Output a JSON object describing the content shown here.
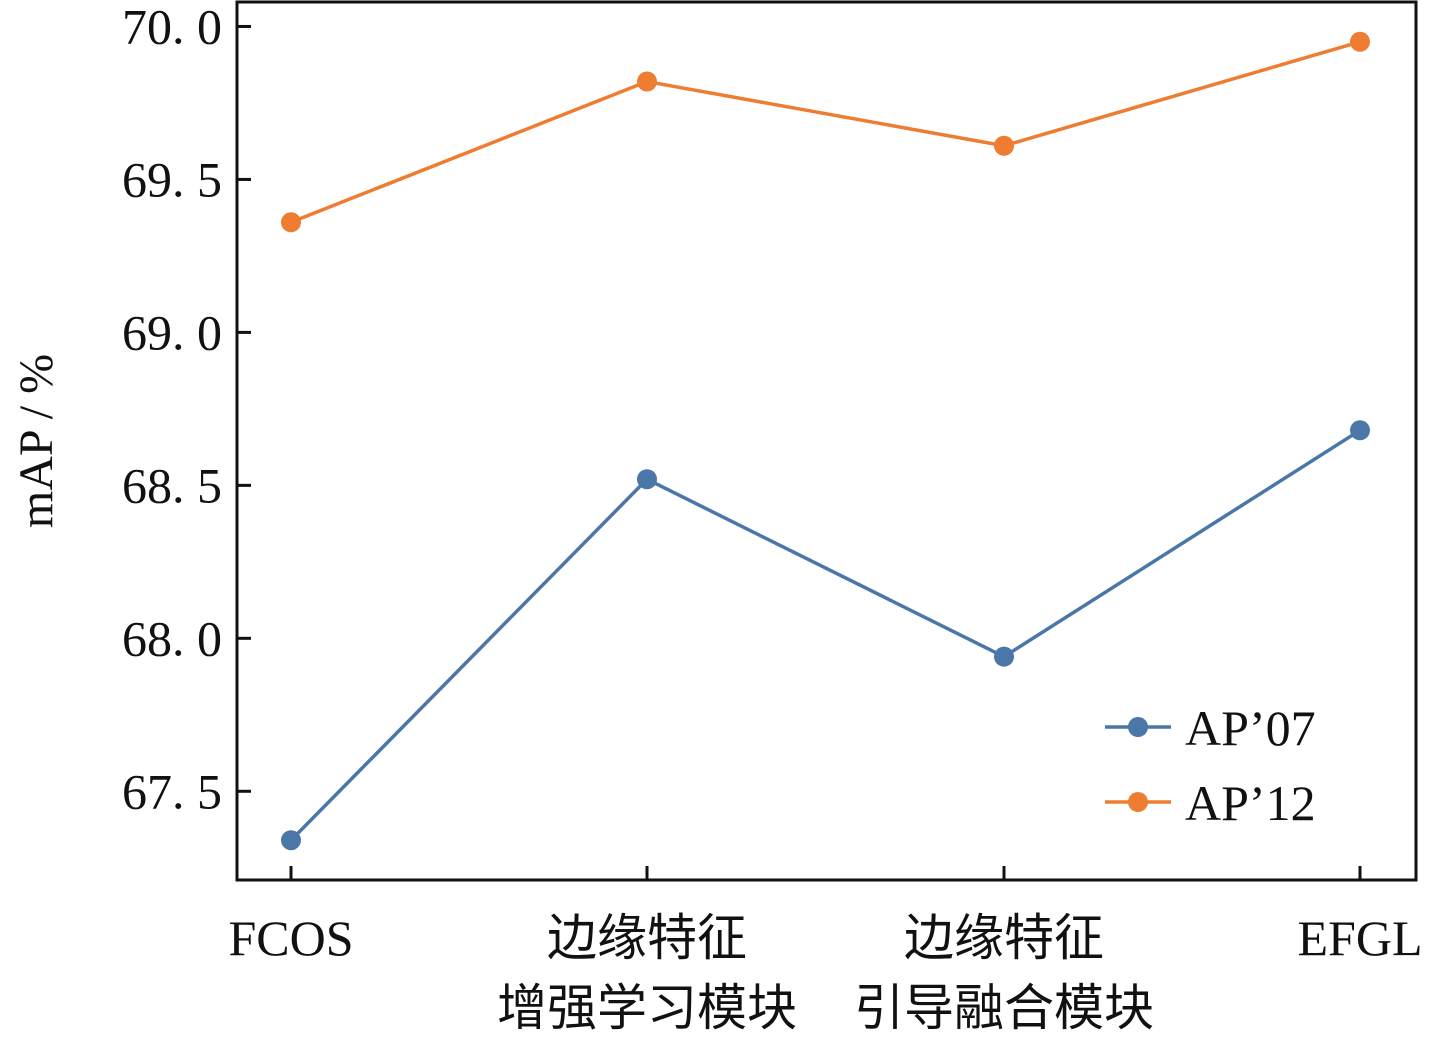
{
  "chart_data": {
    "type": "line",
    "categories": [
      [
        "FCOS"
      ],
      [
        "边缘特征",
        "增强学习模块"
      ],
      [
        "边缘特征",
        "引导融合模块"
      ],
      [
        "EFGL"
      ]
    ],
    "series": [
      {
        "name": "AP’07",
        "color": "#4a76a8",
        "values": [
          67.34,
          68.52,
          67.94,
          68.68
        ]
      },
      {
        "name": "AP’12",
        "color": "#ee7d31",
        "values": [
          69.36,
          69.82,
          69.61,
          69.95
        ]
      }
    ],
    "ylabel": "mAP / %",
    "ylim": [
      67.21,
      70.08
    ],
    "yticks": [
      67.5,
      68.0,
      68.5,
      69.0,
      69.5,
      70.0
    ],
    "ytick_labels": [
      "67. 5",
      "68. 0",
      "68. 5",
      "69. 0",
      "69. 5",
      "70. 0"
    ],
    "legend_position": "lower-right",
    "grid": false
  }
}
